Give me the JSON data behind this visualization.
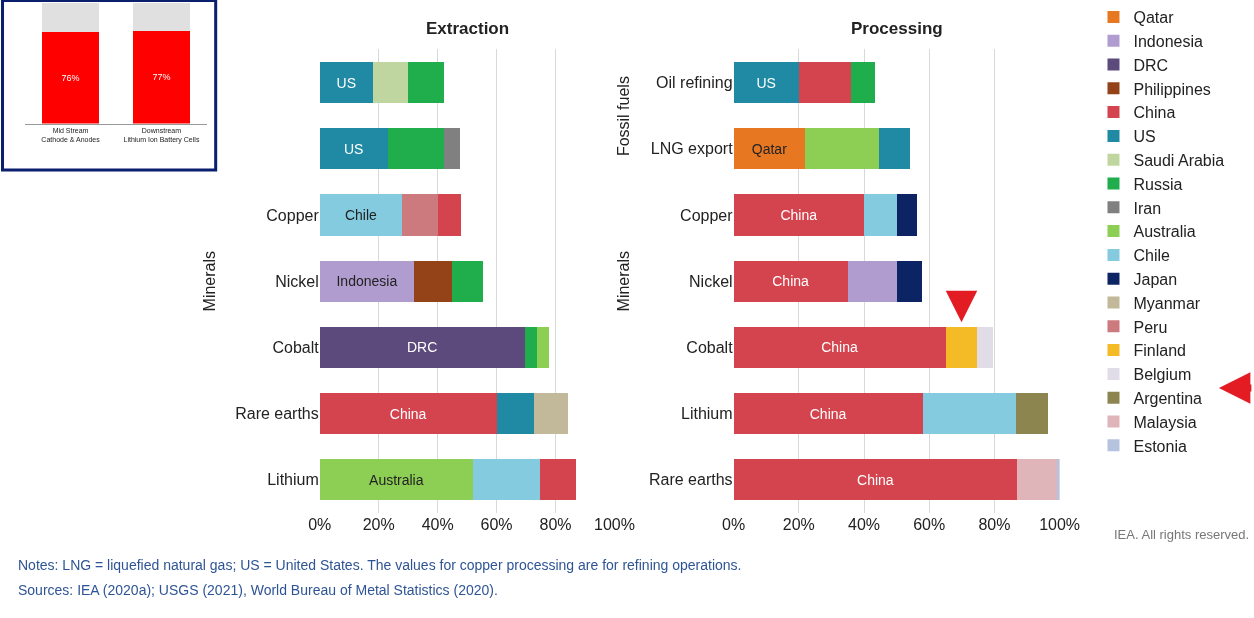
{
  "chart_data": [
    {
      "type": "bar",
      "title": "Extraction",
      "ylabel": "Minerals",
      "orientation": "horizontal",
      "categories": [
        null,
        null,
        "Copper",
        "Nickel",
        "Cobalt",
        "Rare earths",
        "Lithium"
      ],
      "xlim": [
        0,
        100
      ],
      "xticks": [
        {
          "value": 0,
          "label": "0%"
        },
        {
          "value": 20,
          "label": "20%"
        },
        {
          "value": 40,
          "label": "40%"
        },
        {
          "value": 60,
          "label": "60%"
        },
        {
          "value": 80,
          "label": "80%"
        },
        {
          "value": 100,
          "label": "100%"
        }
      ],
      "grid": "x",
      "series": [
        {
          "color": "#b19cd0",
          "values": [
            null,
            null,
            null,
            32,
            null,
            null,
            null
          ],
          "base": [
            null,
            null,
            null,
            0,
            null,
            null,
            null
          ],
          "value_labels": [
            null,
            null,
            null,
            "Indonesia",
            null,
            null,
            null
          ]
        },
        {
          "color": "#5c4a7d",
          "values": [
            null,
            null,
            null,
            null,
            69.5,
            null,
            null
          ],
          "base": [
            null,
            null,
            null,
            null,
            0,
            null,
            null
          ],
          "value_labels": [
            null,
            null,
            null,
            null,
            "DRC",
            null,
            null
          ]
        },
        {
          "color": "#944218",
          "values": [
            null,
            null,
            null,
            13,
            null,
            null,
            null
          ],
          "base": [
            null,
            null,
            null,
            32,
            null,
            null,
            null
          ]
        },
        {
          "color": "#d4444e",
          "values": [
            null,
            null,
            8,
            null,
            null,
            60,
            12.5
          ],
          "base": [
            null,
            null,
            40,
            null,
            null,
            0,
            74.6
          ],
          "value_labels": [
            null,
            null,
            null,
            null,
            null,
            "China",
            null
          ]
        },
        {
          "color": "#2089a3",
          "values": [
            18,
            23,
            null,
            null,
            null,
            12.6,
            null
          ],
          "base": [
            0,
            0,
            null,
            null,
            null,
            60,
            null
          ],
          "value_labels": [
            "US",
            "US",
            null,
            null,
            null,
            null,
            null
          ]
        },
        {
          "color": "#c0d6a0",
          "values": [
            12,
            null,
            null,
            null,
            null,
            null,
            null
          ],
          "base": [
            18,
            null,
            null,
            null,
            null,
            null,
            null
          ]
        },
        {
          "color": "#1fae4b",
          "values": [
            12,
            19,
            null,
            10.5,
            4.3,
            null,
            null
          ],
          "base": [
            30,
            23,
            null,
            45,
            69.5,
            null,
            null
          ]
        },
        {
          "color": "#808080",
          "values": [
            null,
            5.5,
            null,
            null,
            null,
            null,
            null
          ],
          "base": [
            null,
            42,
            null,
            null,
            null,
            null,
            null
          ]
        },
        {
          "color": "#8dcf55",
          "values": [
            null,
            null,
            null,
            null,
            4.1,
            null,
            52
          ],
          "base": [
            null,
            null,
            null,
            null,
            73.8,
            null,
            0
          ],
          "value_labels": [
            null,
            null,
            null,
            null,
            null,
            null,
            "Australia"
          ]
        },
        {
          "color": "#84cbe0",
          "values": [
            null,
            null,
            28,
            null,
            null,
            null,
            22.6
          ],
          "base": [
            null,
            null,
            0,
            null,
            null,
            null,
            52
          ],
          "value_labels": [
            null,
            null,
            "Chile",
            null,
            null,
            null,
            null
          ]
        },
        {
          "color": "#c2b99a",
          "values": [
            null,
            null,
            null,
            null,
            null,
            11.5,
            null
          ],
          "base": [
            null,
            null,
            null,
            null,
            null,
            72.6,
            null
          ]
        },
        {
          "color": "#cc7a7e",
          "values": [
            null,
            null,
            12,
            null,
            null,
            null,
            null
          ],
          "base": [
            null,
            null,
            28,
            null,
            null,
            null,
            null
          ]
        }
      ]
    },
    {
      "type": "bar",
      "title": "Processing",
      "ylabel": "Minerals",
      "orientation": "horizontal",
      "categories": [
        "Oil refining",
        "LNG export",
        "Copper",
        "Nickel",
        "Cobalt",
        "Lithium",
        "Rare earths"
      ],
      "xlim": [
        0,
        100
      ],
      "xticks": [
        {
          "value": 0,
          "label": "0%"
        },
        {
          "value": 20,
          "label": "20%"
        },
        {
          "value": 40,
          "label": "40%"
        },
        {
          "value": 60,
          "label": "60%"
        },
        {
          "value": 80,
          "label": "80%"
        },
        {
          "value": 100,
          "label": "100%"
        }
      ],
      "grid": "x",
      "legend": "right",
      "annotations": [
        "Fossil fuels",
        "IEA. All rights reserved.",
        "Notes: LNG = liquefied natural gas; US = United States. The values for copper processing are for refining operations.",
        "Sources: IEA (2020a); USGS (2021), World Bureau of Metal Statistics (2020)."
      ],
      "series": [
        {
          "name": "Qatar",
          "color": "#e87722",
          "values": [
            null,
            22,
            null,
            null,
            null,
            null,
            null
          ],
          "base": [
            null,
            0,
            null,
            null,
            null,
            null,
            null
          ],
          "value_labels": [
            null,
            "Qatar",
            null,
            null,
            null,
            null,
            null
          ]
        },
        {
          "name": "Indonesia",
          "color": "#b19cd0",
          "values": [
            null,
            null,
            null,
            15,
            null,
            null,
            null
          ],
          "base": [
            null,
            null,
            null,
            35,
            null,
            null,
            null
          ]
        },
        {
          "name": "DRC",
          "color": "#5c4a7d",
          "values": [
            null,
            null,
            null,
            null,
            null,
            null,
            null
          ]
        },
        {
          "name": "Philippines",
          "color": "#944218",
          "values": [
            null,
            null,
            null,
            null,
            null,
            null,
            null
          ]
        },
        {
          "name": "China",
          "color": "#d4444e",
          "values": [
            16,
            null,
            40,
            35,
            65,
            58,
            87
          ],
          "base": [
            20,
            null,
            0,
            0,
            0,
            0,
            0
          ],
          "value_labels": [
            null,
            null,
            "China",
            "China",
            "China",
            "China",
            "China"
          ]
        },
        {
          "name": "US",
          "color": "#2089a3",
          "values": [
            20,
            9.6,
            null,
            null,
            null,
            null,
            null
          ],
          "base": [
            0,
            44.6,
            null,
            null,
            null,
            null,
            null
          ],
          "value_labels": [
            "US",
            null,
            null,
            null,
            null,
            null,
            null
          ]
        },
        {
          "name": "Saudi Arabia",
          "color": "#c0d6a0",
          "values": [
            null,
            null,
            null,
            null,
            null,
            null,
            null
          ]
        },
        {
          "name": "Russia",
          "color": "#1fae4b",
          "values": [
            7.3,
            null,
            null,
            null,
            null,
            null,
            null
          ],
          "base": [
            36,
            null,
            null,
            null,
            null,
            null,
            null
          ]
        },
        {
          "name": "Iran",
          "color": "#808080",
          "values": [
            null,
            null,
            null,
            null,
            null,
            null,
            null
          ]
        },
        {
          "name": "Australia",
          "color": "#8dcf55",
          "values": [
            null,
            22.6,
            null,
            null,
            null,
            null,
            null
          ],
          "base": [
            null,
            22,
            null,
            null,
            null,
            null,
            null
          ]
        },
        {
          "name": "Chile",
          "color": "#84cbe0",
          "values": [
            null,
            null,
            10,
            null,
            null,
            28.6,
            null
          ],
          "base": [
            null,
            null,
            40,
            null,
            null,
            58,
            null
          ]
        },
        {
          "name": "Japan",
          "color": "#0c2463",
          "values": [
            null,
            null,
            6.3,
            7.7,
            null,
            null,
            null
          ],
          "base": [
            null,
            null,
            50,
            50,
            null,
            null,
            null
          ]
        },
        {
          "name": "Myanmar",
          "color": "#c2b99a",
          "values": [
            null,
            null,
            null,
            null,
            null,
            null,
            null
          ]
        },
        {
          "name": "Peru",
          "color": "#cc7a7e",
          "values": [
            null,
            null,
            null,
            null,
            null,
            null,
            null
          ]
        },
        {
          "name": "Finland",
          "color": "#f5bb27",
          "values": [
            null,
            null,
            null,
            null,
            9.7,
            null,
            null
          ],
          "base": [
            null,
            null,
            null,
            null,
            65,
            null,
            null
          ]
        },
        {
          "name": "Belgium",
          "color": "#e0dde8",
          "values": [
            null,
            null,
            null,
            null,
            4.9,
            null,
            null
          ],
          "base": [
            null,
            null,
            null,
            null,
            74.7,
            null,
            null
          ]
        },
        {
          "name": "Argentina",
          "color": "#8c8550",
          "values": [
            null,
            null,
            null,
            null,
            null,
            9.7,
            null
          ],
          "base": [
            null,
            null,
            null,
            null,
            null,
            86.6,
            null
          ]
        },
        {
          "name": "Malaysia",
          "color": "#e0b5ba",
          "values": [
            null,
            null,
            null,
            null,
            null,
            null,
            12.3
          ],
          "base": [
            null,
            null,
            null,
            null,
            null,
            null,
            87
          ]
        },
        {
          "name": "Estonia",
          "color": "#b5c3de",
          "values": [
            null,
            null,
            null,
            null,
            null,
            null,
            0.7
          ],
          "base": [
            null,
            null,
            null,
            null,
            null,
            null,
            99.3
          ]
        }
      ]
    },
    {
      "type": "bar",
      "stacked": true,
      "tick_labels": "x",
      "categories": [
        "Mid Stream\nCathode & Anodes",
        "Downstream\nLithium Ion Battery Cells"
      ],
      "ylim": [
        0,
        100
      ],
      "series": [
        {
          "color": "#ff0000",
          "values": [
            76,
            77
          ],
          "value_labels": [
            "76%",
            "77%"
          ]
        },
        {
          "color": "#e0e0e0",
          "values": [
            24,
            23
          ]
        }
      ]
    }
  ]
}
